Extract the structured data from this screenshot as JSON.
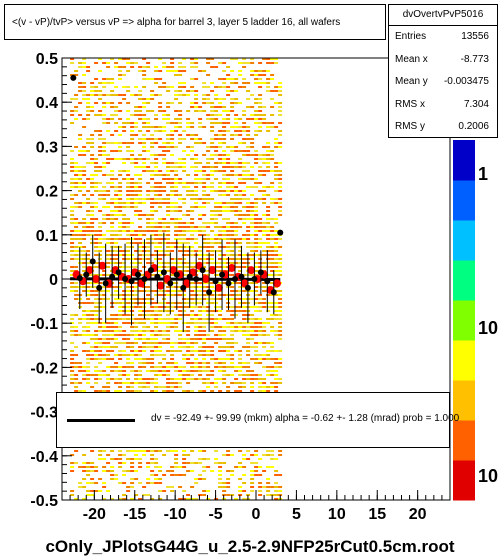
{
  "chart_data": {
    "type": "scatter",
    "title": "<(v - vP)/tvP> versus   vP => alpha for barrel 3, layer 5 ladder 16, all wafers",
    "xlabel": "",
    "ylabel": "",
    "xlim": [
      -24,
      24
    ],
    "ylim": [
      -0.5,
      0.5
    ],
    "x_ticks": [
      "-20",
      "-15",
      "-10",
      "-5",
      "0",
      "5",
      "10",
      "15",
      "20"
    ],
    "y_ticks": [
      "0.5",
      "0.4",
      "0.3",
      "0.2",
      "0.1",
      "0",
      "-0.1",
      "-0.2",
      "-0.3",
      "-0.4",
      "-0.5"
    ],
    "z_ticks": [
      "1",
      "10",
      "10"
    ],
    "grid": false,
    "series": [
      {
        "name": "profile",
        "marker_color": "#000000",
        "x": [
          -22.6,
          -21.8,
          -21.0,
          -20.2,
          -19.4,
          -18.6,
          -17.8,
          -17.0,
          -16.2,
          -15.4,
          -14.6,
          -13.8,
          -13.0,
          -12.2,
          -11.4,
          -10.6,
          -9.8,
          -9.0,
          -8.2,
          -7.4,
          -6.6,
          -5.8,
          -5.0,
          -4.2,
          -3.4,
          -2.6,
          -1.8,
          -1.0,
          -0.2,
          0.6,
          1.4,
          2.2,
          3.0
        ],
        "y": [
          0.455,
          0.002,
          0.01,
          0.04,
          -0.02,
          -0.01,
          0.005,
          0.015,
          0.0,
          -0.005,
          0.01,
          0.0,
          0.02,
          0.005,
          0.015,
          -0.01,
          0.01,
          -0.02,
          0.005,
          0.0,
          0.02,
          -0.03,
          -0.005,
          0.01,
          -0.01,
          0.0,
          0.005,
          -0.02,
          0.0,
          0.015,
          -0.005,
          -0.03,
          0.105
        ],
        "err": [
          0.0,
          0.07,
          0.05,
          0.06,
          0.08,
          0.09,
          0.07,
          0.06,
          0.08,
          0.1,
          0.07,
          0.09,
          0.08,
          0.06,
          0.09,
          0.07,
          0.08,
          0.1,
          0.07,
          0.06,
          0.08,
          0.09,
          0.07,
          0.08,
          0.06,
          0.09,
          0.07,
          0.08,
          0.06,
          0.05,
          0.07,
          0.05,
          0.0
        ]
      },
      {
        "name": "red points",
        "marker_color": "#ff0000",
        "x": [
          -22.2,
          -21.4,
          -20.6,
          -19.8,
          -19.0,
          -18.2,
          -17.4,
          -16.6,
          -15.8,
          -15.0,
          -14.2,
          -13.4,
          -12.6,
          -11.8,
          -11.0,
          -10.2,
          -9.4,
          -8.6,
          -7.8,
          -7.0,
          -6.2,
          -5.4,
          -4.6,
          -3.8,
          -3.0,
          -2.2,
          -1.4,
          -0.6,
          0.2,
          1.0,
          1.8,
          2.6
        ],
        "y": [
          0.01,
          -0.005,
          0.02,
          0.0,
          0.03,
          -0.01,
          0.02,
          0.005,
          0.0,
          0.015,
          -0.01,
          0.01,
          0.025,
          -0.015,
          0.0,
          0.02,
          0.01,
          -0.01,
          0.015,
          0.03,
          0.0,
          0.02,
          -0.02,
          0.01,
          0.025,
          0.005,
          -0.01,
          0.02,
          0.0,
          0.01,
          -0.025,
          -0.01
        ]
      }
    ],
    "fit": {
      "slope": -6.2e-05,
      "intercept": -0.0009,
      "x_range": [
        -23,
        3
      ]
    },
    "heatmap": {
      "x_range": [
        -23,
        3
      ],
      "y_range": [
        -0.5,
        0.5
      ],
      "colors": [
        "#ffff00",
        "#f0e030",
        "#e8c000",
        "#f08000",
        "#ff6000"
      ]
    },
    "palette": [
      "#0000c8",
      "#0060ff",
      "#00c0ff",
      "#00ff80",
      "#80ff00",
      "#ffff00",
      "#ffc000",
      "#ff6000",
      "#e00000"
    ]
  },
  "stats": {
    "name": "dvOvertvPvP5016",
    "rows": [
      {
        "label": "Entries",
        "value": "13556"
      },
      {
        "label": "Mean x",
        "value": "-8.773"
      },
      {
        "label": "Mean y",
        "value": "-0.003475"
      },
      {
        "label": "RMS x",
        "value": "7.304"
      },
      {
        "label": "RMS y",
        "value": "0.2006"
      }
    ]
  },
  "legend": {
    "fit_text": "dv =  -92.49 +- 99.99 (mkm) alpha =   -0.62 +-  1.28 (mrad) prob = 1.000"
  },
  "footer": {
    "label": "cOnly_JPlotsG44G_u_2.5-2.9NFP25rCut0.5cm.root"
  }
}
